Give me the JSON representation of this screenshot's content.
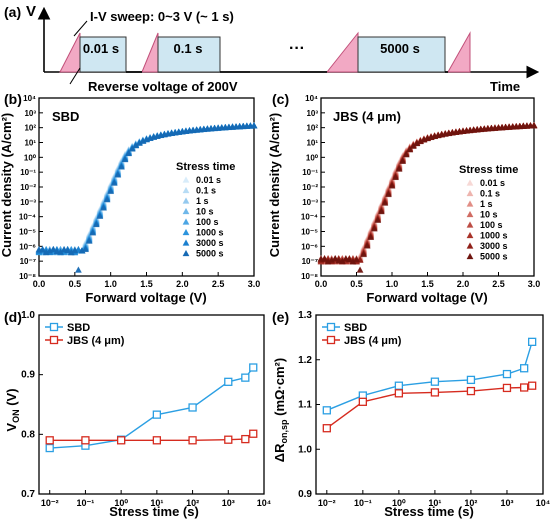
{
  "panel_a": {
    "tag": "(a)",
    "y_letter": "V",
    "sweep_label": "I-V sweep: 0~3 V (~ 1 s)",
    "reverse_label": "Reverse voltage of 200V",
    "time_label": "Time",
    "ellipsis": "···",
    "intervals": [
      "0.01 s",
      "0.1 s",
      "5000 s"
    ]
  },
  "colors": {
    "sbd": "#2b9fe3",
    "jbs": "#d62b1f",
    "pulse_fill": "#f2a9c4",
    "pulse_stroke": "#c2507a",
    "interval_fill": "#cfe7f2",
    "sbd_stress": [
      "#d8ecfa",
      "#b7dcf5",
      "#94c9ef",
      "#6eb7ea",
      "#4ba5e4",
      "#2b94dd",
      "#1a7fcf",
      "#1569b4"
    ],
    "jbs_stress": [
      "#f7d8d5",
      "#eeb4ae",
      "#e18d85",
      "#d06b62",
      "#bc4c43",
      "#a83228",
      "#8f1f17",
      "#6e140e"
    ]
  },
  "chart_data": [
    {
      "id": "b",
      "type": "scatter",
      "tag": "(b)",
      "name_label": "SBD",
      "xlabel": "Forward voltage (V)",
      "ylabel": "Current density (A/cm²)",
      "xlim": [
        0.0,
        3.0
      ],
      "ylim_log10": [
        -8,
        4
      ],
      "x_ticks": [
        "0.0",
        "0.5",
        "1.0",
        "1.5",
        "2.0",
        "2.5",
        "3.0"
      ],
      "y_ticks": [
        "10⁻⁸",
        "10⁻⁷",
        "10⁻⁶",
        "10⁻⁵",
        "10⁻⁴",
        "10⁻³",
        "10⁻²",
        "10⁻¹",
        "10⁰",
        "10¹",
        "10²",
        "10³",
        "10⁴"
      ],
      "legend_title": "Stress time",
      "legend_entries": [
        "0.01 s",
        "0.1 s",
        "1 s",
        "10 s",
        "100 s",
        "1000 s",
        "3000 s",
        "5000 s"
      ],
      "legend_position": "center-right",
      "marker": "triangle",
      "curve_model": {
        "leak_A_cm2": 5e-07,
        "turn_on_V": 0.52,
        "ideality": 1.5,
        "series_R_ohm_cm2": 0.012
      }
    },
    {
      "id": "c",
      "type": "scatter",
      "tag": "(c)",
      "name_label": "JBS (4 μm)",
      "xlabel": "Forward voltage (V)",
      "ylabel": "Current density (A/cm²)",
      "xlim": [
        0.0,
        3.0
      ],
      "ylim_log10": [
        -8,
        4
      ],
      "x_ticks": [
        "0.0",
        "0.5",
        "1.0",
        "1.5",
        "2.0",
        "2.5",
        "3.0"
      ],
      "y_ticks": [
        "10⁻⁸",
        "10⁻⁷",
        "10⁻⁶",
        "10⁻⁵",
        "10⁻⁴",
        "10⁻³",
        "10⁻²",
        "10⁻¹",
        "10⁰",
        "10¹",
        "10²",
        "10³",
        "10⁴"
      ],
      "legend_title": "Stress time",
      "legend_entries": [
        "0.01 s",
        "0.1 s",
        "1 s",
        "10 s",
        "100 s",
        "1000 s",
        "3000 s",
        "5000 s"
      ],
      "legend_position": "center-right",
      "marker": "triangle",
      "curve_model": {
        "leak_A_cm2": 1.2e-07,
        "turn_on_V": 0.5,
        "ideality": 1.45,
        "series_R_ohm_cm2": 0.012
      }
    },
    {
      "id": "d",
      "type": "line",
      "tag": "(d)",
      "xlabel": "Stress time (s)",
      "ylabel": "V_ON (V)",
      "xscale": "log",
      "xlim_log10": [
        -2.3,
        4.0
      ],
      "ylim": [
        0.7,
        1.0
      ],
      "x_ticks": [
        "10⁻²",
        "10⁻¹",
        "10⁰",
        "10¹",
        "10²",
        "10³",
        "10⁴"
      ],
      "y_ticks": [
        "0.7",
        "0.8",
        "0.9",
        "1.0"
      ],
      "legend_position": "top-left",
      "x": [
        0.01,
        0.1,
        1,
        10,
        100,
        1000,
        3000,
        5000
      ],
      "series": [
        {
          "name": "SBD",
          "values": [
            0.777,
            0.781,
            0.791,
            0.833,
            0.845,
            0.888,
            0.895,
            0.912
          ]
        },
        {
          "name": "JBS (4 μm)",
          "values": [
            0.79,
            0.79,
            0.79,
            0.79,
            0.79,
            0.791,
            0.792,
            0.801
          ]
        }
      ]
    },
    {
      "id": "e",
      "type": "line",
      "tag": "(e)",
      "xlabel": "Stress time (s)",
      "ylabel": "ΔR_on,sp (mΩ·cm²)",
      "xscale": "log",
      "xlim_log10": [
        -2.3,
        4.0
      ],
      "ylim": [
        0.9,
        1.3
      ],
      "x_ticks": [
        "10⁻²",
        "10⁻¹",
        "10⁰",
        "10¹",
        "10²",
        "10³",
        "10⁴"
      ],
      "y_ticks": [
        "0.9",
        "1.0",
        "1.1",
        "1.2",
        "1.3"
      ],
      "legend_position": "top-left",
      "x": [
        0.01,
        0.1,
        1,
        10,
        100,
        1000,
        3000,
        5000
      ],
      "series": [
        {
          "name": "SBD",
          "values": [
            1.087,
            1.12,
            1.142,
            1.151,
            1.155,
            1.168,
            1.181,
            1.24
          ]
        },
        {
          "name": "JBS (4 μm)",
          "values": [
            1.047,
            1.106,
            1.125,
            1.127,
            1.13,
            1.137,
            1.138,
            1.142
          ]
        }
      ]
    }
  ]
}
